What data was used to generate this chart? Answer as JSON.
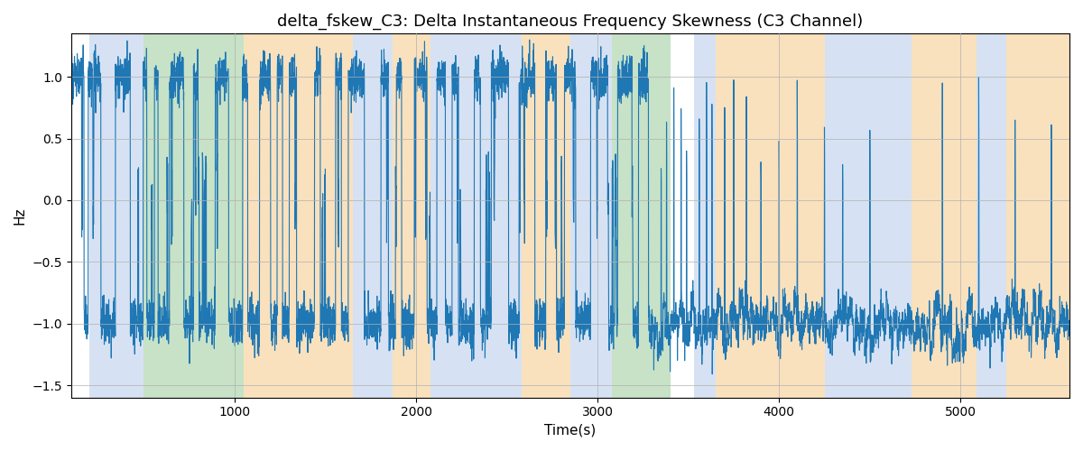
{
  "title": "delta_fskew_C3: Delta Instantaneous Frequency Skewness (C3 Channel)",
  "xlabel": "Time(s)",
  "ylabel": "Hz",
  "xlim": [
    100,
    5600
  ],
  "ylim": [
    -1.6,
    1.35
  ],
  "line_color": "#1f77b4",
  "line_width": 0.8,
  "bg_color": "#ffffff",
  "grid_color": "#b0b0b0",
  "colored_regions": [
    {
      "xmin": 200,
      "xmax": 500,
      "color": "#aec6e8",
      "alpha": 0.5
    },
    {
      "xmin": 500,
      "xmax": 1050,
      "color": "#90c690",
      "alpha": 0.5
    },
    {
      "xmin": 1050,
      "xmax": 1650,
      "color": "#f5c98a",
      "alpha": 0.55
    },
    {
      "xmin": 1650,
      "xmax": 1870,
      "color": "#aec6e8",
      "alpha": 0.5
    },
    {
      "xmin": 1870,
      "xmax": 2080,
      "color": "#f5c98a",
      "alpha": 0.55
    },
    {
      "xmin": 2080,
      "xmax": 2580,
      "color": "#aec6e8",
      "alpha": 0.5
    },
    {
      "xmin": 2580,
      "xmax": 2850,
      "color": "#f5c98a",
      "alpha": 0.55
    },
    {
      "xmin": 2850,
      "xmax": 3080,
      "color": "#aec6e8",
      "alpha": 0.5
    },
    {
      "xmin": 3080,
      "xmax": 3400,
      "color": "#90c690",
      "alpha": 0.5
    },
    {
      "xmin": 3530,
      "xmax": 3650,
      "color": "#aec6e8",
      "alpha": 0.5
    },
    {
      "xmin": 3650,
      "xmax": 4250,
      "color": "#f5c98a",
      "alpha": 0.55
    },
    {
      "xmin": 4250,
      "xmax": 4730,
      "color": "#aec6e8",
      "alpha": 0.5
    },
    {
      "xmin": 4730,
      "xmax": 5090,
      "color": "#f5c98a",
      "alpha": 0.55
    },
    {
      "xmin": 5090,
      "xmax": 5250,
      "color": "#aec6e8",
      "alpha": 0.5
    },
    {
      "xmin": 5250,
      "xmax": 5600,
      "color": "#f5c98a",
      "alpha": 0.55
    }
  ],
  "seed": 42,
  "figsize": [
    12,
    5
  ],
  "dpi": 100,
  "title_fontsize": 13,
  "label_fontsize": 11
}
